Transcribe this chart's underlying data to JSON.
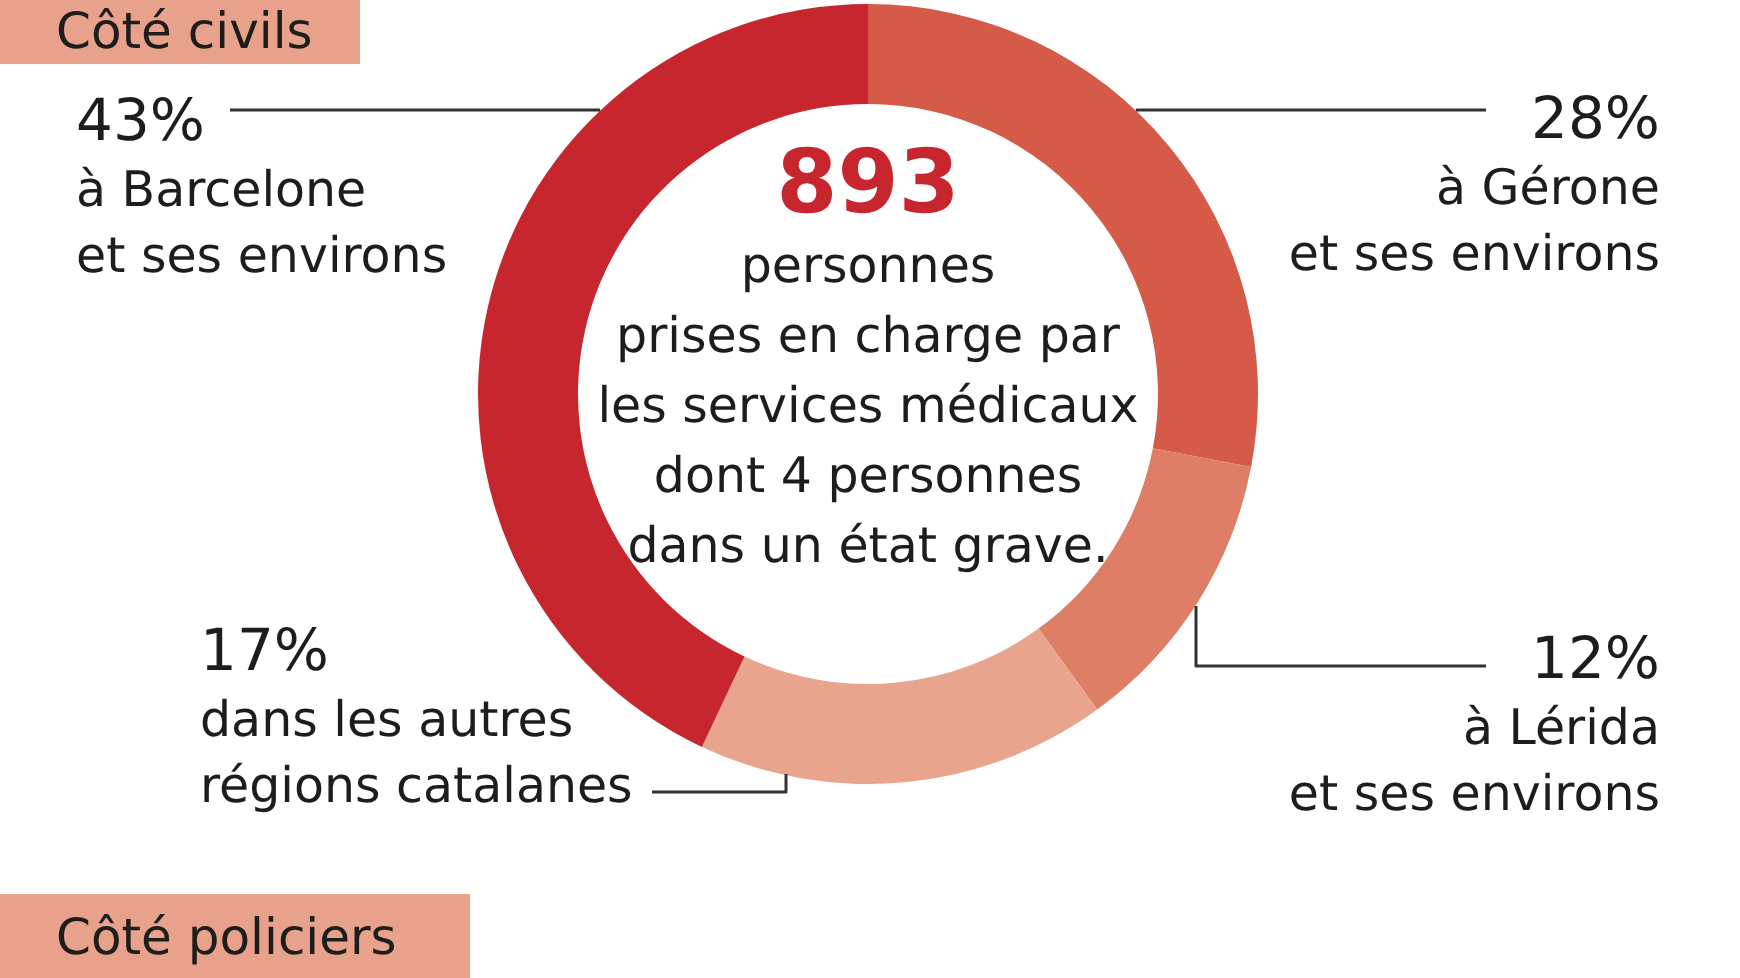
{
  "chart_data": {
    "type": "donut",
    "title": "Côté civils",
    "categories": [
      "à Gérone\net ses environs",
      "à Lérida\net ses environs",
      "dans les autres\nrégions catalanes",
      "à Barcelone\net ses environs"
    ],
    "values": [
      28,
      12,
      17,
      43
    ],
    "colors": [
      "#d55a48",
      "#de7e67",
      "#e9a48e",
      "#c8262e"
    ],
    "value_labels": [
      "28%",
      "12%",
      "17%",
      "43%"
    ],
    "annotations": [
      "893",
      "personnes\nprises en charge par\nles services médicaux\ndont 4 personnes\ndans un état grave.",
      "Côté policiers"
    ]
  }
}
